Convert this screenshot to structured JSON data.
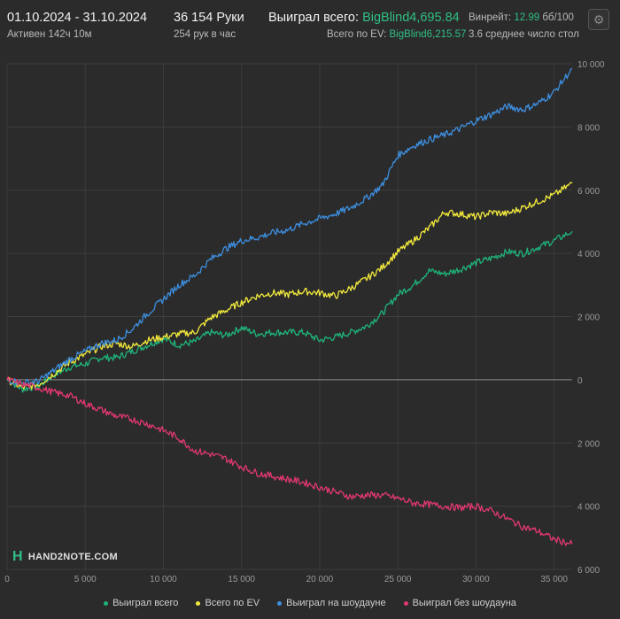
{
  "header": {
    "date_range": "01.10.2024 - 31.10.2024",
    "active": "Активен 142ч 10м",
    "hands": "36 154 Руки",
    "hands_per_hour": "254 рук в час",
    "won_label": "Выиграл всего:",
    "won_value": "BigBlind4,695.84",
    "ev_label": "Всего по EV:",
    "ev_value": "BigBlind6,215.57",
    "winrate_label": "Винрейт:",
    "winrate_value": "12.99",
    "winrate_unit": "бб/100",
    "avg_tables": "3.6 среднее число стол"
  },
  "logo_text": "HAND2NOTE.COM",
  "colors": {
    "won": "#1fb37a",
    "ev": "#f2e93c",
    "showdown": "#3d8fe0",
    "nonshowdown": "#e0386e",
    "accent": "#2fbf84"
  },
  "chart_data": {
    "type": "line",
    "xlim": [
      0,
      36154
    ],
    "ylim": [
      -6000,
      10000
    ],
    "x_ticks": [
      0,
      5000,
      10000,
      15000,
      20000,
      25000,
      30000,
      35000
    ],
    "x_tick_labels": [
      "0",
      "5 000",
      "10 000",
      "15 000",
      "20 000",
      "25 000",
      "30 000",
      "35 000"
    ],
    "y_ticks": [
      10000,
      8000,
      6000,
      4000,
      2000,
      0,
      -2000,
      -4000,
      -6000
    ],
    "y_tick_labels": [
      "10 000",
      "8 000",
      "6 000",
      "4 000",
      "2 000",
      "0",
      "2 000",
      "4 000",
      "6 000"
    ],
    "grid": true,
    "legend": "bottom",
    "series": [
      {
        "name": "Выиграл всего",
        "color_key": "won",
        "points": [
          [
            0,
            0
          ],
          [
            1000,
            -300
          ],
          [
            2000,
            -200
          ],
          [
            3000,
            150
          ],
          [
            4000,
            400
          ],
          [
            5000,
            500
          ],
          [
            6000,
            700
          ],
          [
            7000,
            700
          ],
          [
            8000,
            900
          ],
          [
            9000,
            1100
          ],
          [
            10000,
            1300
          ],
          [
            11000,
            1100
          ],
          [
            12000,
            1200
          ],
          [
            13000,
            1500
          ],
          [
            14000,
            1400
          ],
          [
            15000,
            1650
          ],
          [
            16000,
            1450
          ],
          [
            17000,
            1500
          ],
          [
            18000,
            1500
          ],
          [
            19000,
            1500
          ],
          [
            20000,
            1250
          ],
          [
            21000,
            1350
          ],
          [
            22000,
            1500
          ],
          [
            23000,
            1700
          ],
          [
            24000,
            2100
          ],
          [
            25000,
            2700
          ],
          [
            26000,
            3000
          ],
          [
            27000,
            3450
          ],
          [
            28000,
            3350
          ],
          [
            29000,
            3500
          ],
          [
            30000,
            3700
          ],
          [
            31000,
            3850
          ],
          [
            32000,
            4050
          ],
          [
            33000,
            4000
          ],
          [
            34000,
            4200
          ],
          [
            35000,
            4400
          ],
          [
            36154,
            4696
          ]
        ]
      },
      {
        "name": "Всего по EV",
        "color_key": "ev",
        "points": [
          [
            0,
            0
          ],
          [
            1000,
            -250
          ],
          [
            2000,
            -150
          ],
          [
            3000,
            200
          ],
          [
            4000,
            550
          ],
          [
            5000,
            800
          ],
          [
            6000,
            1050
          ],
          [
            7000,
            1150
          ],
          [
            8000,
            1050
          ],
          [
            9000,
            1250
          ],
          [
            10000,
            1350
          ],
          [
            11000,
            1450
          ],
          [
            12000,
            1500
          ],
          [
            13000,
            1950
          ],
          [
            14000,
            2200
          ],
          [
            15000,
            2450
          ],
          [
            16000,
            2650
          ],
          [
            17000,
            2750
          ],
          [
            18000,
            2700
          ],
          [
            19000,
            2800
          ],
          [
            20000,
            2750
          ],
          [
            21000,
            2650
          ],
          [
            22000,
            2900
          ],
          [
            23000,
            3200
          ],
          [
            24000,
            3550
          ],
          [
            25000,
            4050
          ],
          [
            26000,
            4400
          ],
          [
            27000,
            4800
          ],
          [
            28000,
            5300
          ],
          [
            29000,
            5250
          ],
          [
            30000,
            5150
          ],
          [
            31000,
            5300
          ],
          [
            32000,
            5250
          ],
          [
            33000,
            5450
          ],
          [
            34000,
            5650
          ],
          [
            35000,
            5850
          ],
          [
            36154,
            6216
          ]
        ]
      },
      {
        "name": "Выиграл на шоудауне",
        "color_key": "showdown",
        "points": [
          [
            0,
            0
          ],
          [
            1000,
            -100
          ],
          [
            2000,
            -50
          ],
          [
            3000,
            300
          ],
          [
            4000,
            650
          ],
          [
            5000,
            900
          ],
          [
            6000,
            1150
          ],
          [
            7000,
            1250
          ],
          [
            8000,
            1600
          ],
          [
            9000,
            2100
          ],
          [
            10000,
            2550
          ],
          [
            11000,
            3000
          ],
          [
            12000,
            3300
          ],
          [
            13000,
            3800
          ],
          [
            14000,
            4150
          ],
          [
            15000,
            4400
          ],
          [
            16000,
            4500
          ],
          [
            17000,
            4650
          ],
          [
            18000,
            4750
          ],
          [
            19000,
            4950
          ],
          [
            20000,
            5100
          ],
          [
            21000,
            5250
          ],
          [
            22000,
            5450
          ],
          [
            23000,
            5750
          ],
          [
            24000,
            6150
          ],
          [
            25000,
            7100
          ],
          [
            26000,
            7400
          ],
          [
            27000,
            7600
          ],
          [
            28000,
            7750
          ],
          [
            29000,
            7950
          ],
          [
            30000,
            8200
          ],
          [
            31000,
            8400
          ],
          [
            32000,
            8650
          ],
          [
            33000,
            8550
          ],
          [
            34000,
            8750
          ],
          [
            35000,
            9100
          ],
          [
            36154,
            9850
          ]
        ]
      },
      {
        "name": "Выиграл без шоудауна",
        "color_key": "nonshowdown",
        "points": [
          [
            0,
            0
          ],
          [
            1000,
            -150
          ],
          [
            2000,
            -250
          ],
          [
            3000,
            -400
          ],
          [
            4000,
            -500
          ],
          [
            5000,
            -750
          ],
          [
            6000,
            -950
          ],
          [
            7000,
            -1150
          ],
          [
            8000,
            -1250
          ],
          [
            9000,
            -1400
          ],
          [
            10000,
            -1600
          ],
          [
            11000,
            -1850
          ],
          [
            12000,
            -2250
          ],
          [
            13000,
            -2350
          ],
          [
            14000,
            -2500
          ],
          [
            15000,
            -2750
          ],
          [
            16000,
            -2950
          ],
          [
            17000,
            -3050
          ],
          [
            18000,
            -3150
          ],
          [
            19000,
            -3250
          ],
          [
            20000,
            -3400
          ],
          [
            21000,
            -3550
          ],
          [
            22000,
            -3700
          ],
          [
            23000,
            -3650
          ],
          [
            24000,
            -3650
          ],
          [
            25000,
            -3750
          ],
          [
            26000,
            -3900
          ],
          [
            27000,
            -3950
          ],
          [
            28000,
            -4000
          ],
          [
            29000,
            -4050
          ],
          [
            30000,
            -4000
          ],
          [
            31000,
            -4150
          ],
          [
            32000,
            -4400
          ],
          [
            33000,
            -4650
          ],
          [
            34000,
            -4800
          ],
          [
            35000,
            -5050
          ],
          [
            36154,
            -5200
          ]
        ]
      }
    ]
  }
}
